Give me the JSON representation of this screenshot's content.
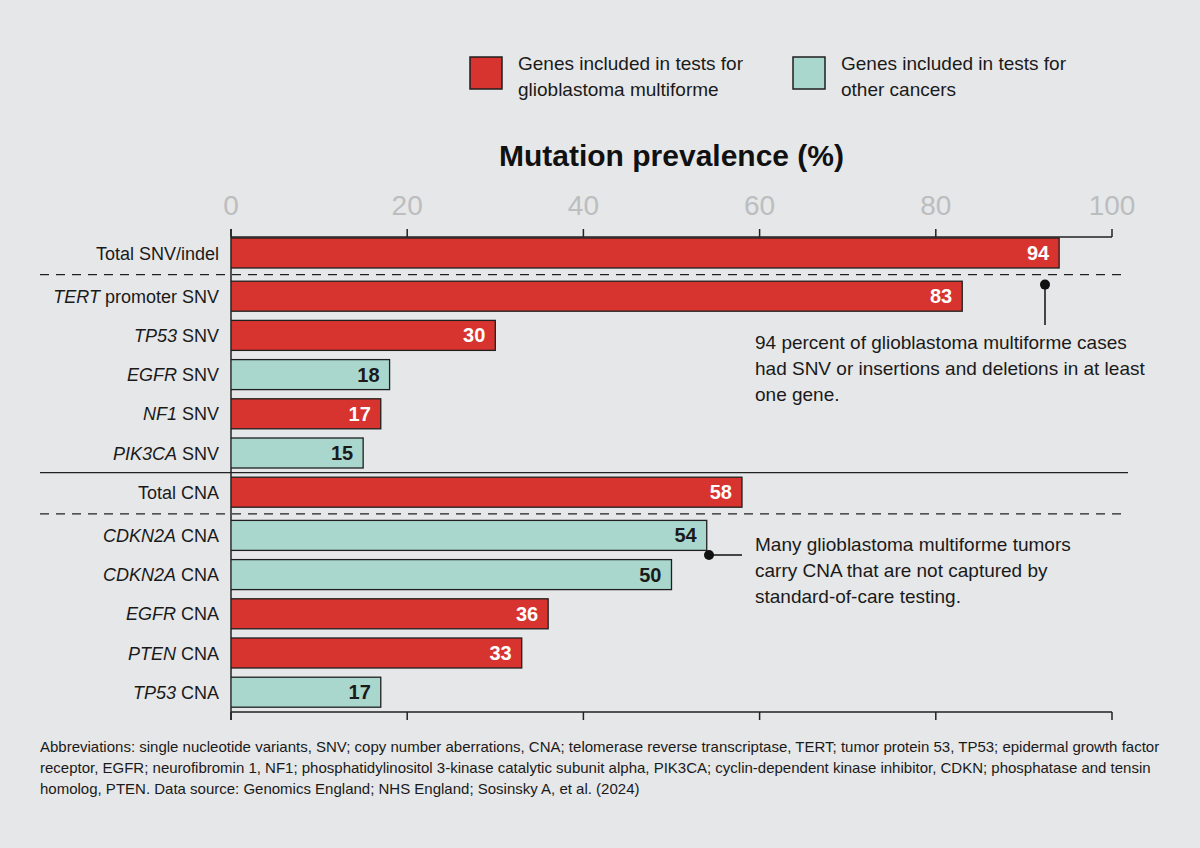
{
  "chart_data": {
    "type": "bar",
    "orientation": "horizontal",
    "title": "Mutation prevalence (%)",
    "categories": [
      "Total SNV/indel",
      "TERT promoter SNV",
      "TP53 SNV",
      "EGFR SNV",
      "NF1 SNV",
      "PIK3CA SNV",
      "Total CNA",
      "CDKN2A CNA",
      "CDKN2A CNA",
      "EGFR CNA",
      "PTEN CNA",
      "TP53 CNA"
    ],
    "series": [
      {
        "name": "Genes included in tests for glioblastoma multiforme",
        "color": "#d7332f",
        "values": [
          94,
          83,
          30,
          null,
          17,
          null,
          58,
          null,
          null,
          36,
          33,
          null
        ]
      },
      {
        "name": "Genes included in tests for other cancers",
        "color": "#a9d6cd",
        "values": [
          null,
          null,
          null,
          18,
          null,
          15,
          null,
          54,
          50,
          null,
          null,
          17
        ]
      }
    ],
    "xlim": [
      0,
      100
    ],
    "xticks": [
      0,
      20,
      40,
      60,
      80,
      100
    ],
    "grid": false,
    "legend": "top",
    "data_labels": true,
    "annotations": [
      "94 percent of glioblastoma multiforme cases had SNV or insertions and deletions in at least one gene.",
      "Many glioblastoma multiforme tumors carry CNA that are not captured by standard-of-care testing."
    ],
    "caption": "Abbreviations: single nucleotide variants, SNV; copy number aberrations, CNA; telomerase reverse transcriptase, TERT; tumor protein 53, TP53; epidermal growth factor receptor, EGFR; neurofibromin 1, NF1; phosphatidylinositol 3-kinase catalytic subunit alpha, PIK3CA; cyclin-dependent kinase inhibitor, CDKN; phosphatase and tensin homolog, PTEN. Data source: Genomics England; NHS England; Sosinsky A, et al. (2024)"
  }
}
